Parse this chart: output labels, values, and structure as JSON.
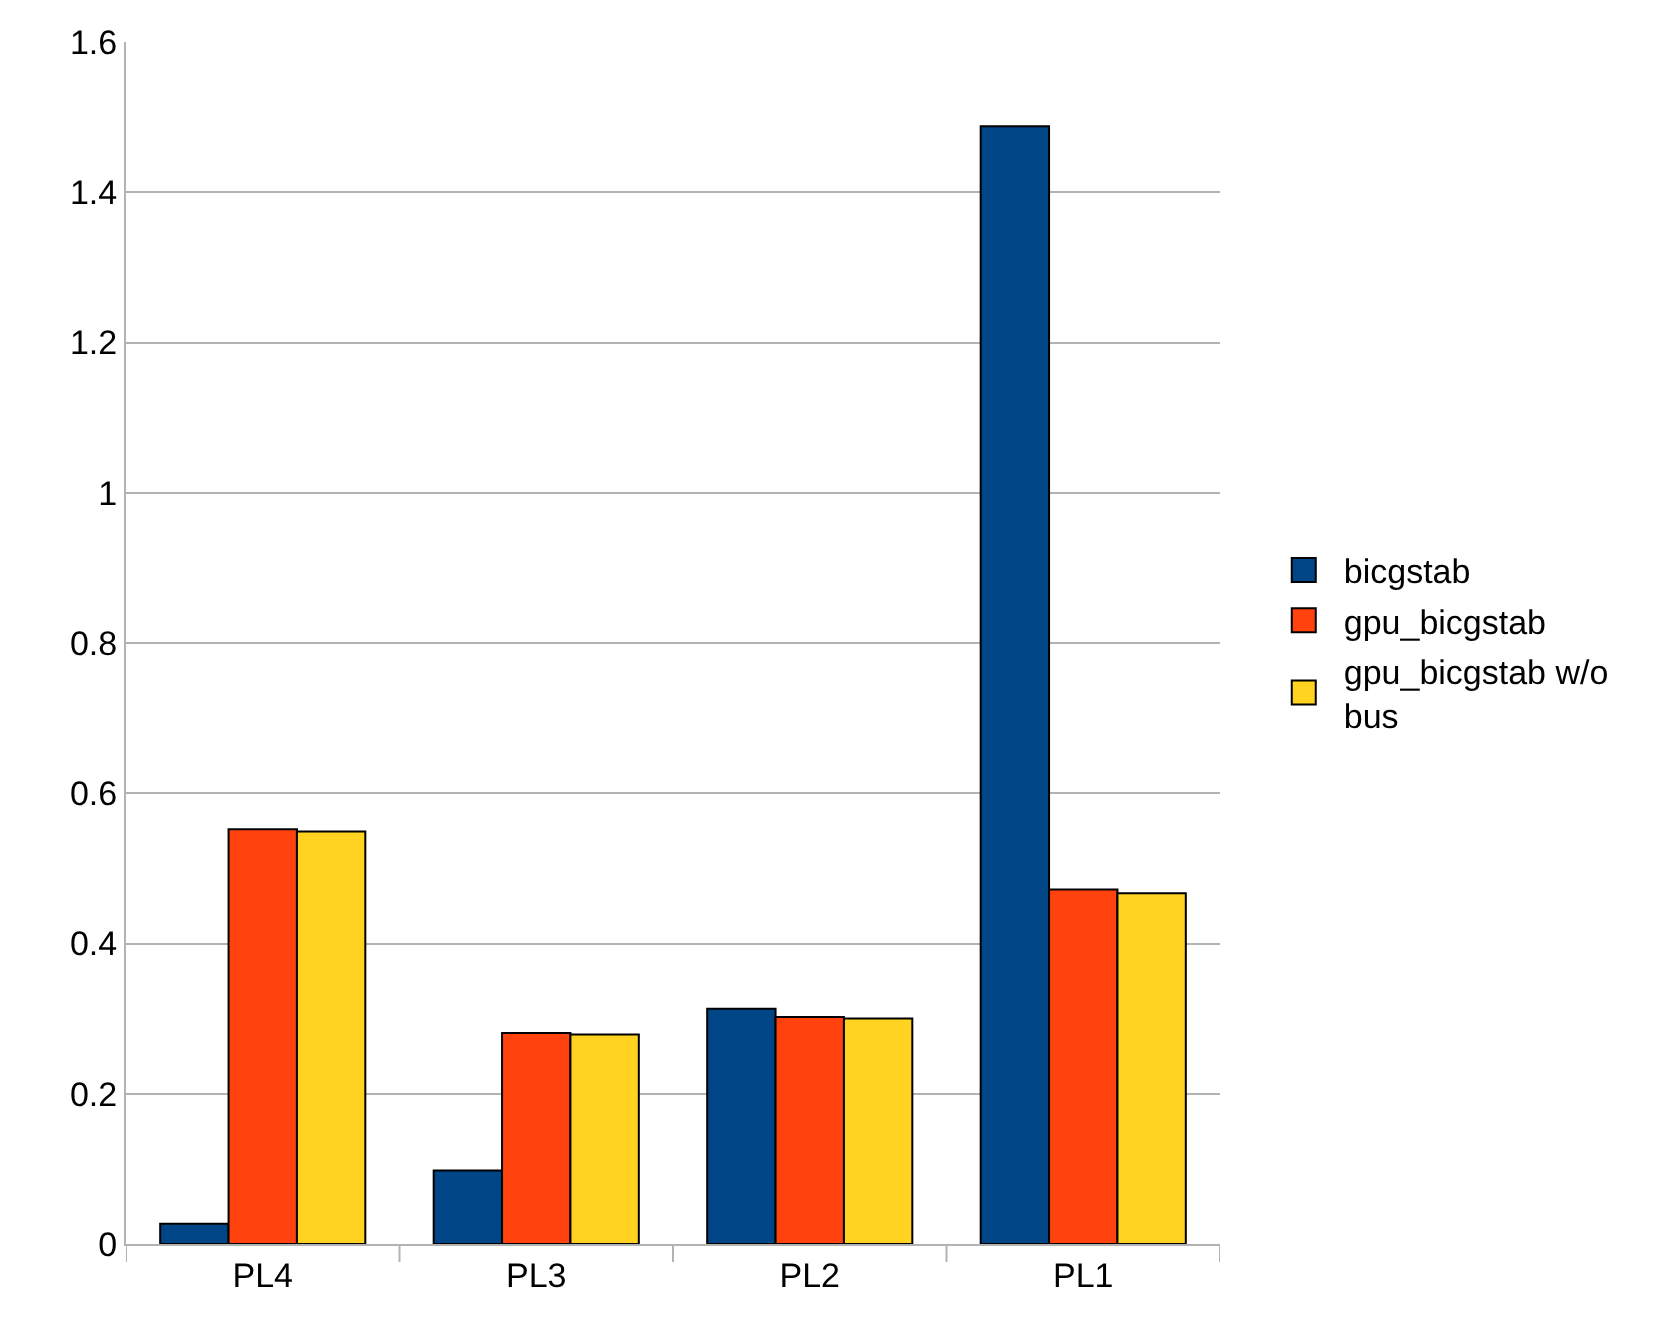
{
  "chart_data": {
    "type": "bar",
    "categories": [
      "PL4",
      "PL3",
      "PL2",
      "PL1"
    ],
    "series": [
      {
        "name": "bicgstab",
        "color": "#004586",
        "values": [
          0.027,
          0.098,
          0.313,
          1.488
        ]
      },
      {
        "name": "gpu_bicgstab",
        "color": "#ff420e",
        "values": [
          0.552,
          0.281,
          0.302,
          0.472
        ]
      },
      {
        "name": "gpu_bicgstab w/o bus",
        "color": "#ffd320",
        "values": [
          0.549,
          0.279,
          0.3,
          0.467
        ]
      }
    ],
    "ylim": [
      0,
      1.6
    ],
    "yticks": [
      0,
      0.2,
      0.4,
      0.6,
      0.8,
      1,
      1.2,
      1.4,
      1.6
    ],
    "grid": "y",
    "legend": "right"
  }
}
